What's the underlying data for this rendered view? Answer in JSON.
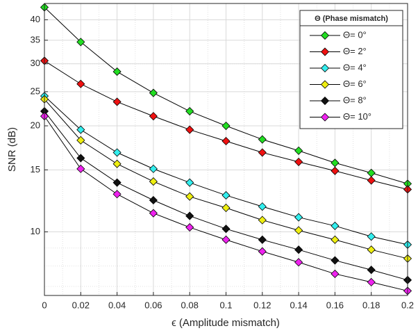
{
  "chart_data": {
    "type": "line",
    "x_label": "ϵ (Amplitude mismatch)",
    "y_label": "SNR (dB)",
    "legend_title": "Θ (Phase mismatch)",
    "legend_position": "upper right",
    "log_y": true,
    "grid": true,
    "minor_grid": true,
    "x": [
      0,
      0.02,
      0.04,
      0.06,
      0.08,
      0.1,
      0.12,
      0.14,
      0.16,
      0.18,
      0.2
    ],
    "xlim": [
      0,
      0.2
    ],
    "xticks": [
      0,
      0.02,
      0.04,
      0.06,
      0.08,
      0.1,
      0.12,
      0.14,
      0.16,
      0.18,
      0.2
    ],
    "ylim": [
      6.6,
      44.5
    ],
    "yticks": [
      10,
      15,
      20,
      25,
      30,
      35,
      40
    ],
    "series": [
      {
        "name": "Θ= 0°",
        "color": "#22dd22",
        "values": [
          43.4,
          34.6,
          28.5,
          24.8,
          22.0,
          20.0,
          18.3,
          17.0,
          15.7,
          14.7,
          13.7
        ]
      },
      {
        "name": "Θ= 2°",
        "color": "#ee1111",
        "values": [
          30.6,
          26.3,
          23.4,
          21.3,
          19.5,
          18.1,
          16.8,
          15.8,
          14.9,
          14.0,
          13.2
        ]
      },
      {
        "name": "Θ= 4°",
        "color": "#33eeee",
        "values": [
          24.3,
          19.5,
          16.8,
          15.1,
          13.8,
          12.7,
          11.8,
          11.0,
          10.4,
          9.7,
          9.2
        ]
      },
      {
        "name": "Θ= 6°",
        "color": "#eeee11",
        "values": [
          23.8,
          18.2,
          15.6,
          13.9,
          12.6,
          11.7,
          10.8,
          10.1,
          9.5,
          8.9,
          8.4
        ]
      },
      {
        "name": "Θ= 8°",
        "color": "#111111",
        "values": [
          22.0,
          16.2,
          13.8,
          12.3,
          11.1,
          10.2,
          9.5,
          8.9,
          8.3,
          7.8,
          7.3
        ]
      },
      {
        "name": "Θ= 10°",
        "color": "#ee22ee",
        "values": [
          21.3,
          15.1,
          12.8,
          11.3,
          10.3,
          9.5,
          8.8,
          8.2,
          7.6,
          7.2,
          6.8
        ]
      }
    ]
  }
}
